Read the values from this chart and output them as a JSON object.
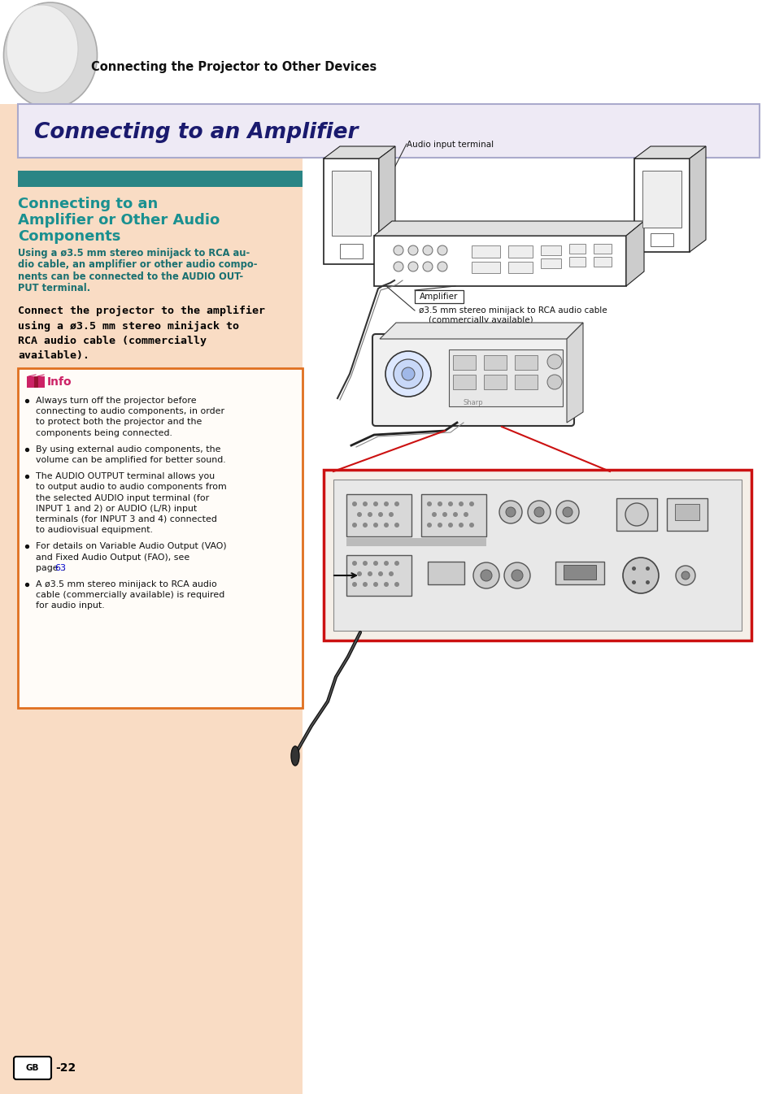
{
  "page_bg": "#ffffff",
  "left_panel_bg": "#f9dcc4",
  "header_text": "Connecting the Projector to Other Devices",
  "title_box_bg": "#eeeaf5",
  "title_box_border": "#aaaacc",
  "title_text": "Connecting to an Amplifier",
  "title_text_color": "#1a1a6e",
  "section_bar_color": "#2a8585",
  "section_title_color": "#1a9090",
  "subtitle_color": "#1a7070",
  "info_box_border": "#e07020",
  "info_title_color": "#cc2266",
  "info_icon_color": "#cc2266",
  "page_number_circle_color": "#000000",
  "link_color": "#0000cc",
  "body_text_color": "#000000",
  "diagram_bg": "#ffffff",
  "red_box_border": "#cc1111",
  "label1": "Audio input terminal",
  "label2": "Amplifier",
  "label3a": "ø3.5 mm stereo minijack to RCA audio cable",
  "label3b": "(commercially available)",
  "subtitle_lines": [
    "Using a ø3.5 mm stereo minijack to RCA au-",
    "dio cable, an amplifier or other audio compo-",
    "nents can be connected to the AUDIO OUT-",
    "PUT terminal."
  ],
  "body_lines": [
    "Connect the projector to the amplifier",
    "using a ø3.5 mm stereo minijack to",
    "RCA audio cable (commercially",
    "available)."
  ],
  "bullets": [
    [
      "Always turn off the projector before",
      "connecting to audio components, in order",
      "to protect both the projector and the",
      "components being connected."
    ],
    [
      "By using external audio components, the",
      "volume can be amplified for better sound."
    ],
    [
      "The AUDIO OUTPUT terminal allows you",
      "to output audio to audio components from",
      "the selected AUDIO input terminal (for",
      "INPUT 1 and 2) or AUDIO (L/R) input",
      "terminals (for INPUT 3 and 4) connected",
      "to audiovisual equipment."
    ],
    [
      "For details on Variable Audio Output (VAO)",
      "and Fixed Audio Output (FAO), see",
      "page 63."
    ],
    [
      "A ø3.5 mm stereo minijack to RCA audio",
      "cable (commercially available) is required",
      "for audio input."
    ]
  ]
}
